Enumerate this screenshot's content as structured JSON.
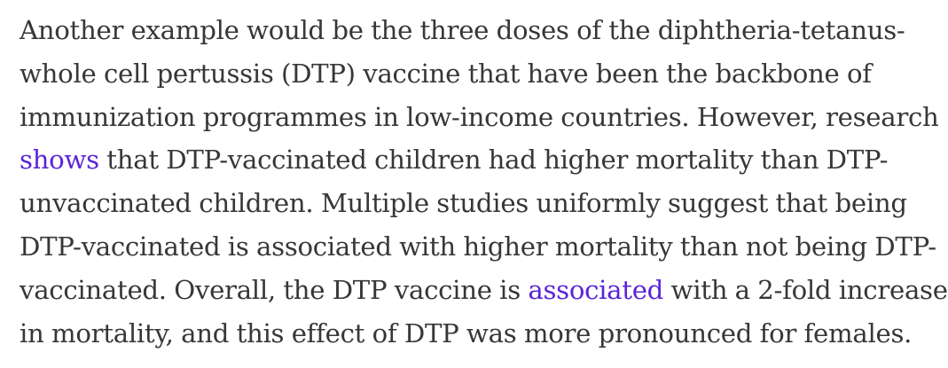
{
  "paragraph": {
    "line_1": "Another example would be the three doses of the diphtheria-tetanus-",
    "line_2": "whole cell pertussis (DTP) vaccine that have been the backbone of",
    "line_3": "immunization programmes in low-income countries. However, research",
    "line_4_link": "shows",
    "line_4_rest": " that DTP-vaccinated children had higher mortality than DTP-",
    "line_5": "unvaccinated children. Multiple studies uniformly suggest that being",
    "line_6": "DTP-vaccinated is associated with higher mortality than not being DTP-",
    "line_7_before": "vaccinated. Overall, the DTP vaccine is ",
    "line_7_link": "associated",
    "line_7_after": " with a 2-fold increase",
    "line_8": "in mortality, and this effect of DTP was more pronounced for females."
  },
  "colors": {
    "text": "#363737",
    "link": "#5b23d9",
    "background": "#ffffff"
  }
}
